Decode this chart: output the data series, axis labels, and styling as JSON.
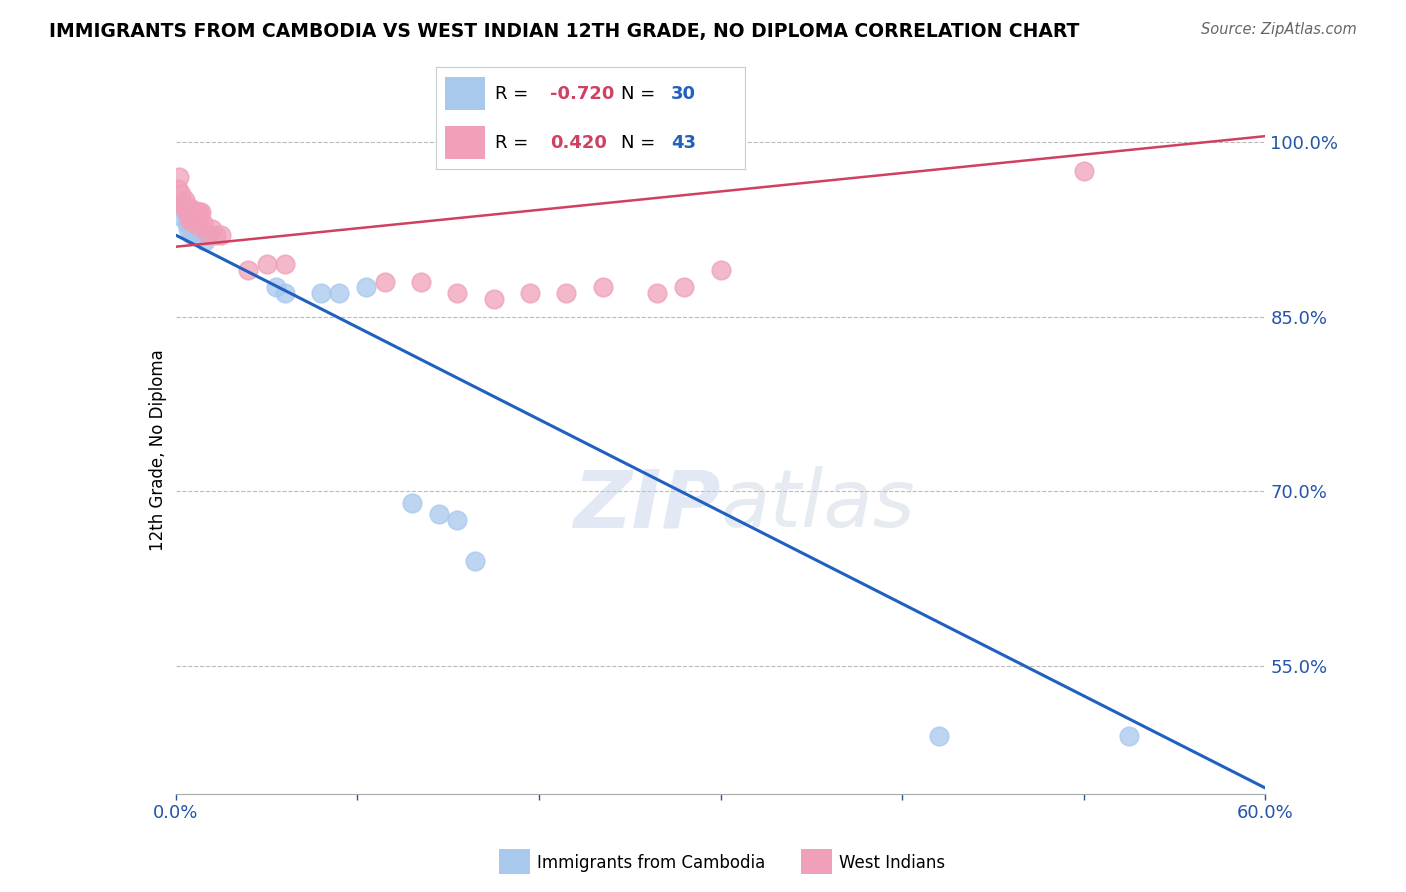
{
  "title": "IMMIGRANTS FROM CAMBODIA VS WEST INDIAN 12TH GRADE, NO DIPLOMA CORRELATION CHART",
  "source": "Source: ZipAtlas.com",
  "ylabel": "12th Grade, No Diploma",
  "xlim": [
    0.0,
    0.6
  ],
  "ylim": [
    0.44,
    1.03
  ],
  "xticks": [
    0.0,
    0.1,
    0.2,
    0.3,
    0.4,
    0.5,
    0.6
  ],
  "ytick_labels_right": [
    "100.0%",
    "85.0%",
    "70.0%",
    "55.0%"
  ],
  "ytick_positions_right": [
    1.0,
    0.85,
    0.7,
    0.55
  ],
  "blue_color": "#A8C8EE",
  "pink_color": "#F0A0B8",
  "blue_line_color": "#2060C0",
  "pink_line_color": "#D04060",
  "legend_blue_R": "-0.720",
  "legend_blue_N": "30",
  "legend_pink_R": "0.420",
  "legend_pink_N": "43",
  "watermark": "ZIPatlas",
  "blue_x": [
    0.003,
    0.004,
    0.005,
    0.006,
    0.007,
    0.007,
    0.008,
    0.008,
    0.009,
    0.009,
    0.01,
    0.01,
    0.011,
    0.012,
    0.013,
    0.014,
    0.015,
    0.016,
    0.018,
    0.055,
    0.06,
    0.08,
    0.09,
    0.105,
    0.13,
    0.145,
    0.155,
    0.165,
    0.42,
    0.525
  ],
  "blue_y": [
    0.945,
    0.935,
    0.94,
    0.93,
    0.935,
    0.925,
    0.935,
    0.928,
    0.93,
    0.92,
    0.925,
    0.92,
    0.928,
    0.925,
    0.918,
    0.922,
    0.92,
    0.915,
    0.92,
    0.875,
    0.87,
    0.87,
    0.87,
    0.875,
    0.69,
    0.68,
    0.675,
    0.64,
    0.49,
    0.49
  ],
  "pink_x": [
    0.001,
    0.002,
    0.003,
    0.004,
    0.005,
    0.005,
    0.006,
    0.006,
    0.007,
    0.007,
    0.008,
    0.008,
    0.008,
    0.009,
    0.009,
    0.01,
    0.01,
    0.011,
    0.011,
    0.012,
    0.012,
    0.013,
    0.013,
    0.014,
    0.015,
    0.018,
    0.02,
    0.022,
    0.025,
    0.04,
    0.05,
    0.06,
    0.115,
    0.135,
    0.155,
    0.175,
    0.195,
    0.215,
    0.235,
    0.265,
    0.28,
    0.3,
    0.5
  ],
  "pink_y": [
    0.96,
    0.97,
    0.955,
    0.945,
    0.945,
    0.95,
    0.94,
    0.945,
    0.94,
    0.938,
    0.94,
    0.935,
    0.932,
    0.94,
    0.942,
    0.935,
    0.938,
    0.94,
    0.933,
    0.94,
    0.928,
    0.94,
    0.935,
    0.94,
    0.93,
    0.92,
    0.925,
    0.92,
    0.92,
    0.89,
    0.895,
    0.895,
    0.88,
    0.88,
    0.87,
    0.865,
    0.87,
    0.87,
    0.875,
    0.87,
    0.875,
    0.89,
    0.975
  ],
  "blue_trend": [
    0.0,
    0.6,
    0.92,
    0.445
  ],
  "pink_trend": [
    0.0,
    0.6,
    0.91,
    1.005
  ]
}
